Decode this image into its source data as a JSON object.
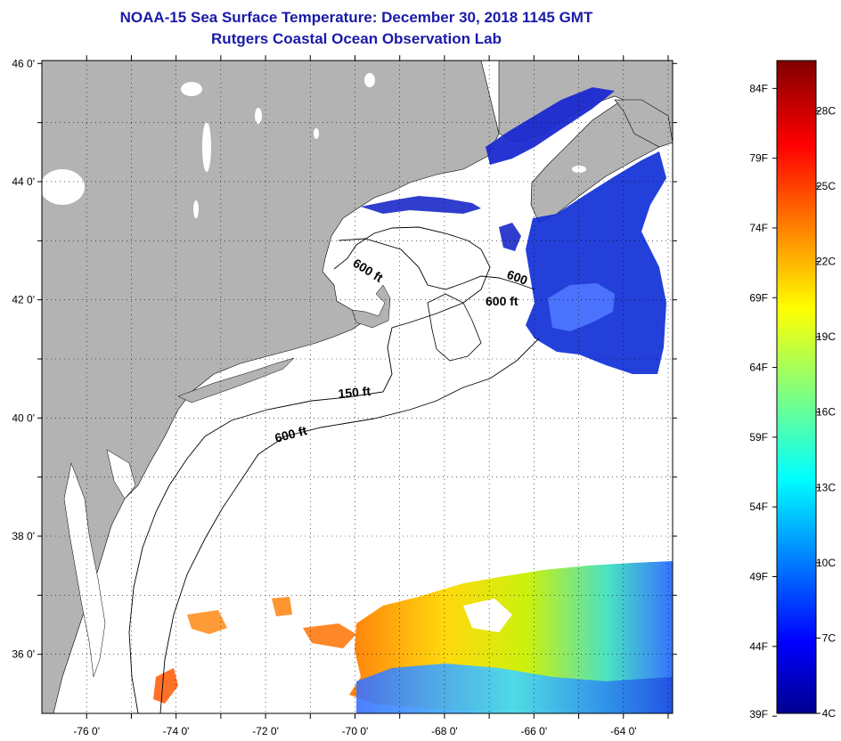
{
  "header": {
    "title": "NOAA-15 Sea Surface Temperature:  December 30, 2018 1145 GMT",
    "subtitle": "Rutgers Coastal Ocean Observation Lab"
  },
  "map": {
    "lat_labels": [
      "46 0'",
      "44 0'",
      "42 0'",
      "40 0'",
      "38 0'",
      "36 0'"
    ],
    "lat_values": [
      46,
      44,
      42,
      40,
      38,
      36
    ],
    "lon_labels": [
      "-76 0'",
      "-74 0'",
      "-72 0'",
      "-70 0'",
      "-68 0'",
      "-66 0'",
      "-64 0'"
    ],
    "lon_values": [
      -76,
      -74,
      -72,
      -70,
      -68,
      -66,
      -64
    ],
    "lat_range": [
      35,
      46.05
    ],
    "lon_range": [
      -77,
      -62.9
    ],
    "gridlines": "dotted",
    "land_color": "#b3b3b3",
    "contour_labels": {
      "c600_gulf_n": "600 ft",
      "c600_east": "600",
      "c600_georges": "600 ft",
      "c150": "150 ft",
      "c600_shelf": "600 ft"
    }
  },
  "colorbar": {
    "f_labels": [
      "84F",
      "79F",
      "74F",
      "69F",
      "64F",
      "59F",
      "54F",
      "49F",
      "44F",
      "39F"
    ],
    "f_values": [
      84,
      79,
      74,
      69,
      64,
      59,
      54,
      49,
      44,
      39
    ],
    "c_labels": [
      "28C",
      "25C",
      "22C",
      "19C",
      "16C",
      "13C",
      "10C",
      "7C",
      "4C"
    ],
    "c_values": [
      28,
      25,
      22,
      19,
      16,
      13,
      10,
      7,
      4
    ],
    "min_c": 4,
    "max_c": 30,
    "colormap": "jet"
  }
}
